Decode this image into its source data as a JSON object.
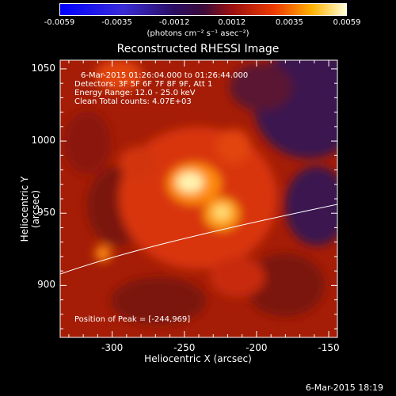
{
  "colorbar": {
    "tick_labels": [
      "-0.0059",
      "-0.0035",
      "-0.0012",
      "0.0012",
      "0.0035",
      "0.0059"
    ],
    "units_label": "(photons cm⁻² s⁻¹ asec⁻²)",
    "min": -0.0059,
    "max": 0.0059
  },
  "plot": {
    "title": "Reconstructed RHESSI Image",
    "info_lines": [
      "6-Mar-2015 01:26:04.000 to 01:26:44.000",
      "Detectors: 3F 5F 6F 7F 8F 9F, Att 1",
      "Energy Range: 12.0 - 25.0 keV",
      "Clean     Total counts: 4.07E+03"
    ],
    "peak_text": "Position of Peak = [-244,969]",
    "xlabel": "Heliocentric X (arcsec)",
    "ylabel": "Heliocentric Y (arcsec)",
    "x_ticks": [
      "-300",
      "-250",
      "-200",
      "-150"
    ],
    "y_ticks": [
      "900",
      "950",
      "1000",
      "1050"
    ],
    "xlim": [
      -336,
      -144
    ],
    "ylim": [
      864,
      1056
    ],
    "peak": {
      "x": -244,
      "y": 969
    }
  },
  "footer": {
    "datestamp": "6-Mar-2015 18:19"
  }
}
